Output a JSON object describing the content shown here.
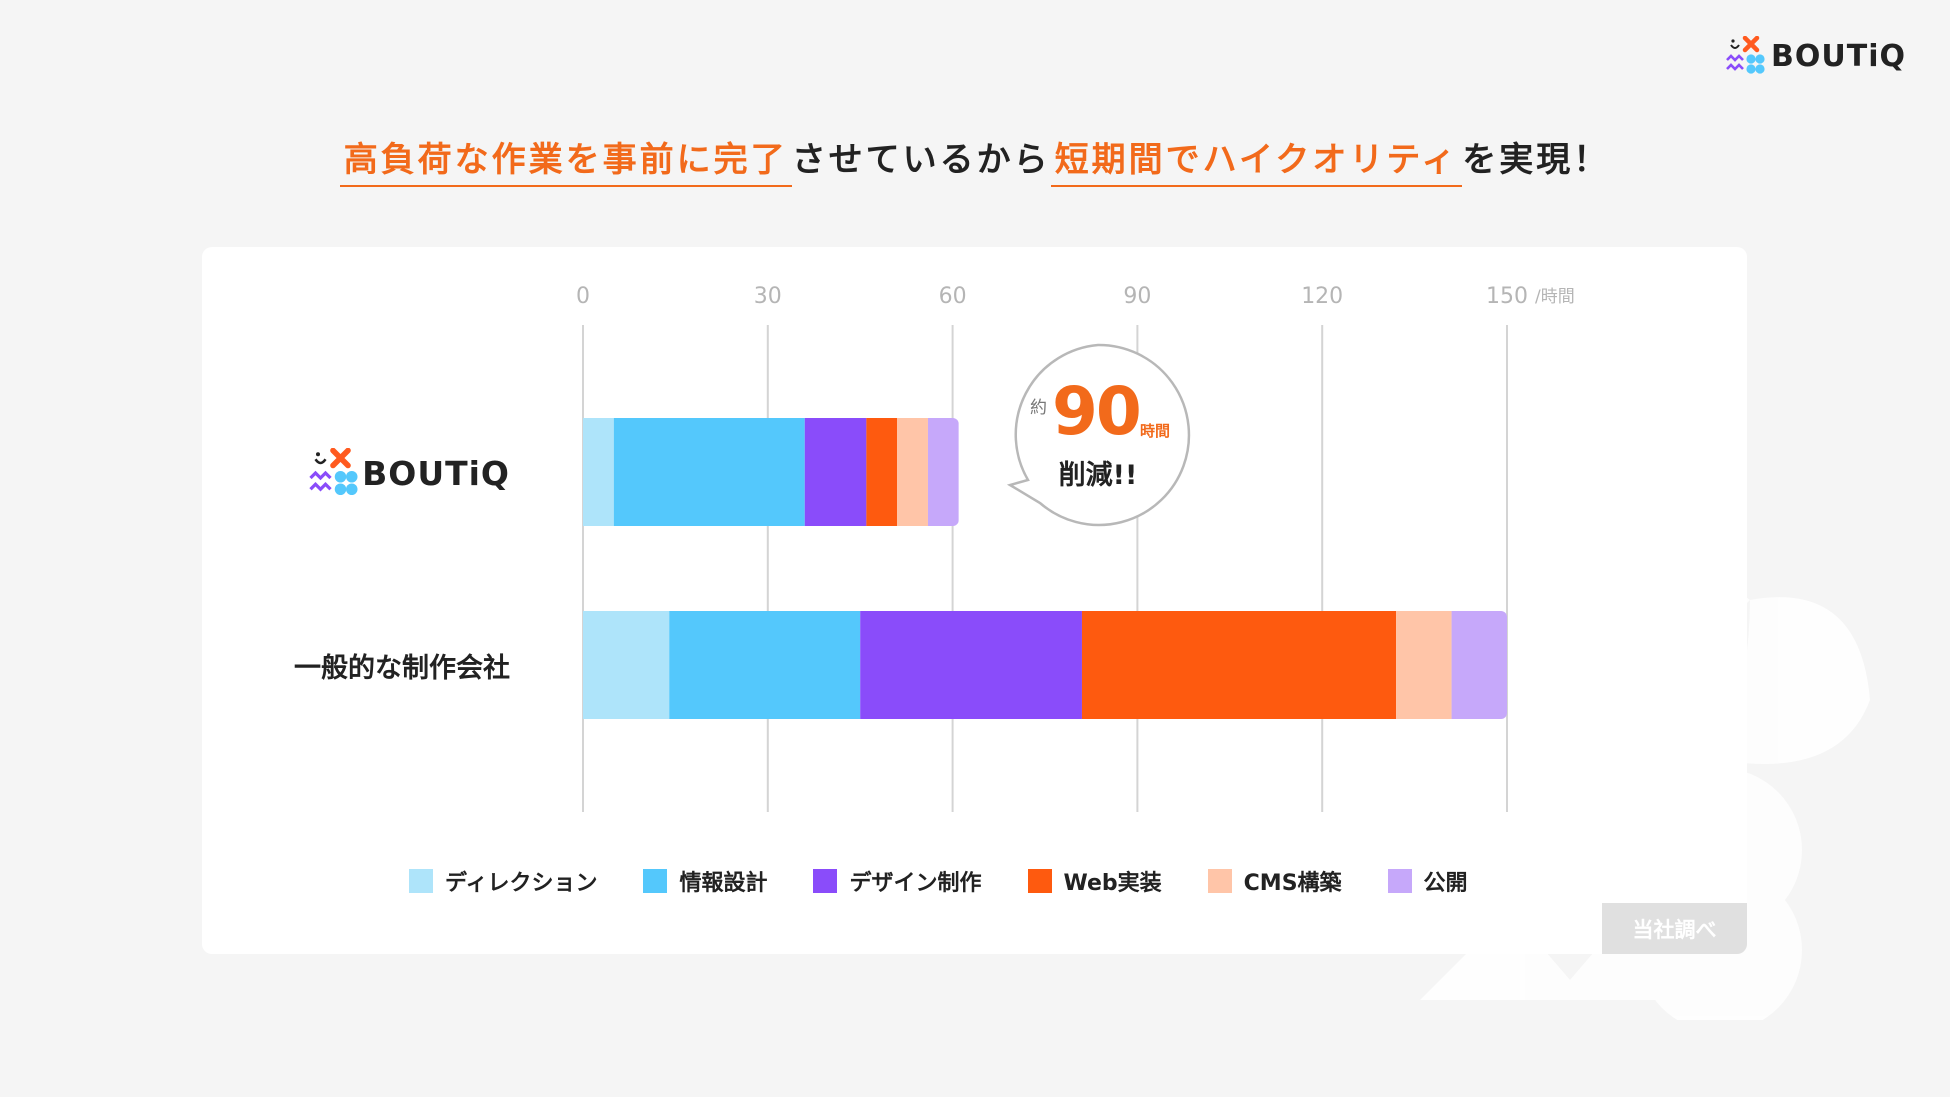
{
  "brand": {
    "name": "BOUTiQ"
  },
  "headline": {
    "part1": "高負荷な作業を事前に完了",
    "part2": "させているから",
    "part3": "短期間でハイクオリティ",
    "part4": "を実現！"
  },
  "chart_data": {
    "type": "bar",
    "orientation": "horizontal",
    "stacked": true,
    "categories": [
      "BOUTiQ",
      "一般的な制作会社"
    ],
    "x_ticks": [
      "0",
      "30",
      "60",
      "90",
      "120",
      "150"
    ],
    "x_unit": "/時間",
    "xlim": [
      0,
      150
    ],
    "grid": true,
    "legend_position": "bottom",
    "series": [
      {
        "name": "ディレクション",
        "color": "#aee4fa",
        "values": [
          5,
          14
        ]
      },
      {
        "name": "情報設計",
        "color": "#54c8fc",
        "values": [
          31,
          31
        ]
      },
      {
        "name": "デザイン制作",
        "color": "#8a4cfa",
        "values": [
          10,
          36
        ]
      },
      {
        "name": "Web実装",
        "color": "#fe5a0f",
        "values": [
          5,
          51
        ]
      },
      {
        "name": "CMS構築",
        "color": "#ffc5a8",
        "values": [
          5,
          9
        ]
      },
      {
        "name": "公開",
        "color": "#c6a8fa",
        "values": [
          5,
          9
        ]
      }
    ],
    "annotation": {
      "prefix": "約",
      "value": "90",
      "unit": "時間",
      "text": "削減!!"
    },
    "source": "当社調べ"
  },
  "colors": {
    "accent": "#f26a1b",
    "logo_orange": "#ff5a1f",
    "logo_purple": "#8a4cfa",
    "logo_blue": "#54c8fc"
  }
}
